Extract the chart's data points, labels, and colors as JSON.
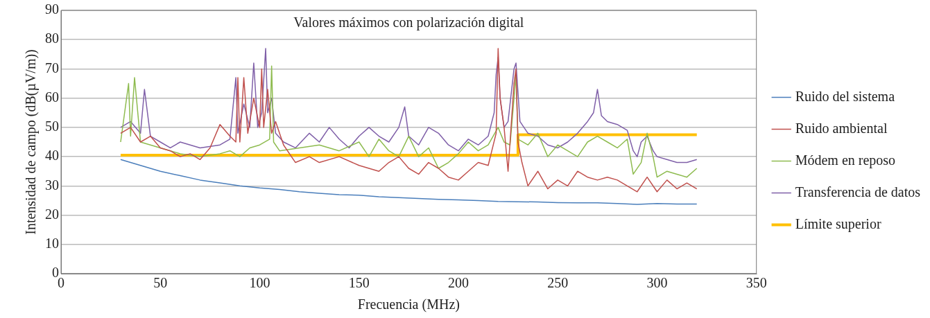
{
  "chart_data": {
    "type": "line",
    "title": "Valores máximos con polarización digital",
    "xlabel": "Frecuencia (MHz)",
    "ylabel": "Intensidad de campo (dB(µV/m))",
    "xlim": [
      0,
      350
    ],
    "xticks": [
      0,
      50,
      100,
      150,
      200,
      250,
      300,
      350
    ],
    "ylim": [
      0,
      90
    ],
    "yticks": [
      0,
      10,
      20,
      30,
      40,
      50,
      60,
      70,
      80,
      90
    ],
    "grid": "y",
    "legend": "right",
    "marker": "none",
    "line_style": "solid",
    "series": [
      {
        "name": "Ruido del sistema",
        "color": "#4a7ebb",
        "x": [
          30,
          40,
          50,
          60,
          70,
          80,
          90,
          100,
          110,
          120,
          130,
          140,
          150,
          160,
          170,
          180,
          190,
          200,
          210,
          220,
          230,
          240,
          250,
          260,
          270,
          280,
          290,
          300,
          310,
          320
        ],
        "values": [
          39,
          37,
          35,
          33.5,
          32,
          31,
          30,
          29.3,
          28.8,
          28,
          27.5,
          27,
          26.8,
          26.3,
          26,
          25.7,
          25.4,
          25.2,
          25,
          24.7,
          24.6,
          24.5,
          24.3,
          24.2,
          24.2,
          24,
          23.7,
          24,
          23.8,
          23.8
        ]
      },
      {
        "name": "Ruido ambiental",
        "color": "#c0504d",
        "x": [
          30,
          35,
          40,
          45,
          50,
          55,
          60,
          65,
          70,
          75,
          80,
          85,
          88,
          89,
          90,
          92,
          94,
          97,
          100,
          101,
          102,
          104,
          106,
          108,
          112,
          118,
          125,
          130,
          140,
          150,
          160,
          165,
          170,
          175,
          180,
          185,
          190,
          195,
          200,
          205,
          210,
          215,
          219,
          220,
          221,
          223,
          225,
          228,
          229,
          230,
          232,
          235,
          240,
          245,
          250,
          255,
          260,
          265,
          270,
          275,
          280,
          285,
          290,
          295,
          300,
          305,
          310,
          315,
          320
        ],
        "values": [
          48,
          50,
          45,
          47,
          43,
          42,
          40,
          41,
          39,
          43,
          51,
          47,
          45,
          67,
          45,
          67,
          48,
          60,
          50,
          70,
          50,
          63,
          48,
          52,
          44,
          38,
          40,
          38,
          40,
          37,
          35,
          38,
          40,
          36,
          34,
          38,
          36,
          33,
          32,
          35,
          38,
          37,
          48,
          77,
          60,
          50,
          35,
          65,
          70,
          45,
          38,
          30,
          35,
          29,
          32,
          30,
          35,
          33,
          32,
          33,
          32,
          30,
          28,
          33,
          28,
          32,
          29,
          31,
          29
        ]
      },
      {
        "name": "Módem en reposo",
        "color": "#8ebb4f",
        "x": [
          30,
          34,
          35,
          37,
          40,
          50,
          55,
          60,
          70,
          80,
          85,
          90,
          95,
          100,
          105,
          106,
          107,
          110,
          120,
          130,
          140,
          150,
          155,
          160,
          165,
          170,
          175,
          180,
          185,
          190,
          195,
          200,
          205,
          210,
          215,
          220,
          223,
          226,
          229,
          230,
          235,
          240,
          245,
          250,
          255,
          260,
          265,
          270,
          275,
          280,
          285,
          288,
          292,
          295,
          298,
          300,
          305,
          310,
          315,
          320
        ],
        "values": [
          45,
          65,
          47,
          67,
          45,
          43,
          42,
          41,
          40,
          41,
          42,
          40,
          43,
          44,
          46,
          71,
          45,
          42,
          43,
          44,
          42,
          45,
          40,
          46,
          42,
          40,
          47,
          40,
          43,
          36,
          38,
          41,
          45,
          42,
          44,
          50,
          45,
          44,
          68,
          46,
          44,
          48,
          40,
          44,
          42,
          40,
          45,
          47,
          45,
          43,
          46,
          34,
          38,
          48,
          40,
          33,
          35,
          34,
          33,
          36
        ]
      },
      {
        "name": "Transferencia de datos",
        "color": "#7f5fa8",
        "x": [
          30,
          35,
          40,
          42,
          45,
          50,
          55,
          60,
          70,
          80,
          85,
          88,
          89,
          92,
          95,
          97,
          99,
          101,
          103,
          104,
          106,
          108,
          112,
          118,
          125,
          130,
          135,
          140,
          145,
          150,
          155,
          160,
          165,
          170,
          173,
          175,
          180,
          185,
          190,
          195,
          200,
          205,
          210,
          215,
          218,
          219,
          220,
          221,
          223,
          225,
          228,
          229,
          231,
          235,
          240,
          245,
          250,
          255,
          260,
          265,
          268,
          270,
          272,
          275,
          280,
          285,
          288,
          290,
          292,
          295,
          298,
          300,
          305,
          310,
          315,
          320
        ],
        "values": [
          50,
          52,
          48,
          63,
          47,
          45,
          43,
          45,
          43,
          44,
          46,
          67,
          48,
          58,
          50,
          72,
          50,
          55,
          77,
          55,
          60,
          48,
          45,
          43,
          48,
          45,
          50,
          46,
          43,
          47,
          50,
          47,
          45,
          50,
          57,
          47,
          44,
          50,
          48,
          44,
          42,
          46,
          44,
          47,
          55,
          68,
          74,
          60,
          50,
          52,
          70,
          72,
          52,
          48,
          47,
          44,
          43,
          45,
          48,
          52,
          55,
          63,
          54,
          52,
          51,
          49,
          42,
          40,
          45,
          47,
          42,
          40,
          39,
          38,
          38,
          39
        ]
      },
      {
        "name": "Límite superior",
        "color": "#ffc000",
        "x": [
          30,
          230,
          230,
          320
        ],
        "values": [
          40.5,
          40.5,
          47.5,
          47.5
        ]
      }
    ]
  }
}
